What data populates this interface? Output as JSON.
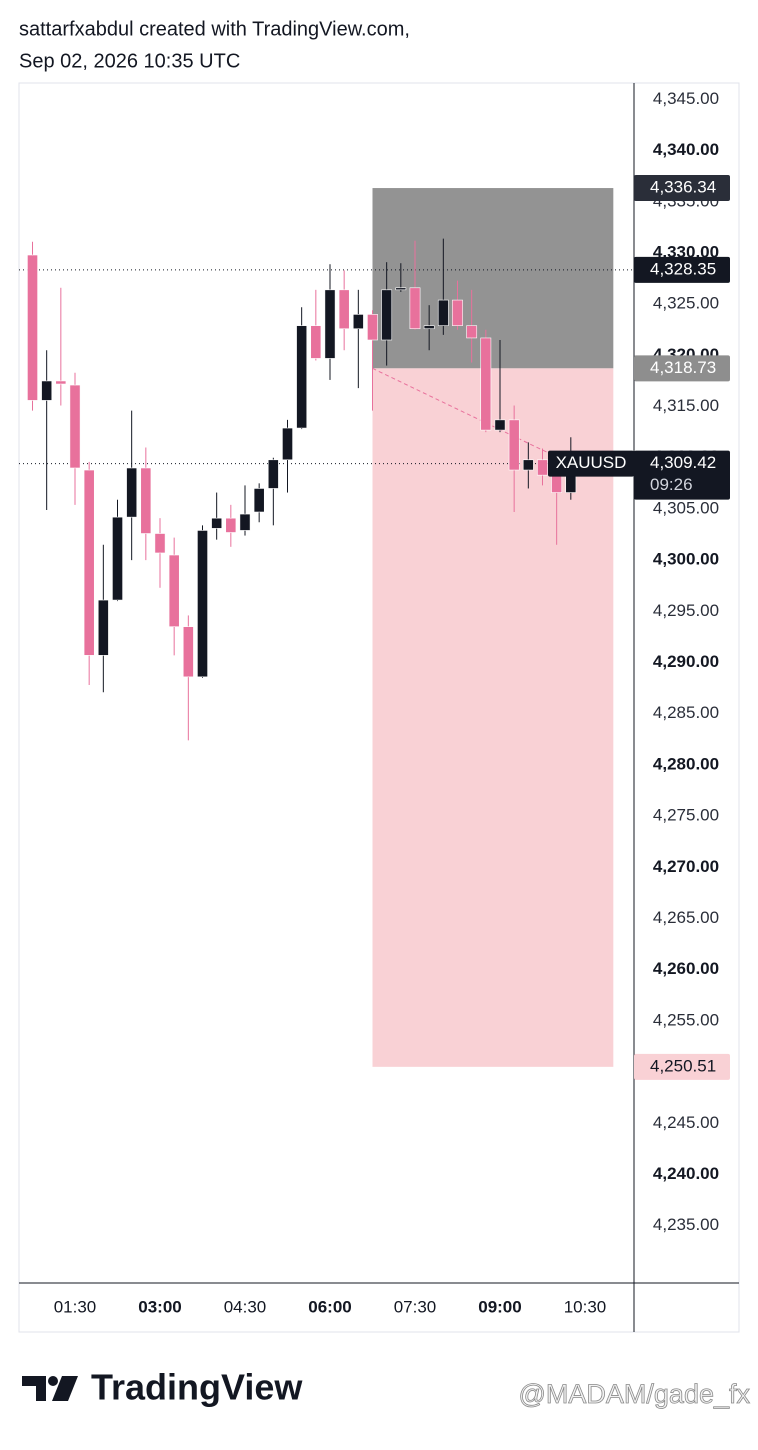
{
  "header": {
    "line1": "sattarfxabdul created with TradingView.com,",
    "line2": "Sep 02, 2026 10:35 UTC"
  },
  "chart_data": {
    "type": "candlestick",
    "x": [
      45,
      60,
      75,
      90,
      105,
      120,
      135,
      150,
      165,
      180,
      195,
      210,
      225,
      240,
      255,
      270,
      285,
      300,
      315,
      330,
      345,
      360,
      375,
      390,
      405,
      420,
      435,
      450,
      465,
      480,
      495,
      510,
      525,
      540,
      555,
      570,
      585,
      600,
      615
    ],
    "open": [
      4329.8,
      4315.6,
      4317.5,
      4317.1,
      4308.8,
      4290.7,
      4296.1,
      4304.2,
      4309.0,
      4302.6,
      4300.5,
      4293.5,
      4288.6,
      4303.1,
      4304.1,
      4302.9,
      4304.7,
      4307.0,
      4309.8,
      4312.9,
      4322.9,
      4319.7,
      4326.4,
      4322.6,
      4324.0,
      4321.5,
      4326.4,
      4326.6,
      4322.6,
      4322.9,
      4325.4,
      4322.9,
      4321.7,
      4312.7,
      4313.7,
      4308.8,
      4309.8,
      4308.3,
      4306.6
    ],
    "high": [
      4331.1,
      4320.5,
      4326.6,
      4318.3,
      4309.6,
      4301.5,
      4305.9,
      4314.6,
      4311.0,
      4304.1,
      4302.2,
      4294.6,
      4303.4,
      4306.6,
      4305.4,
      4307.3,
      4307.5,
      4310.0,
      4313.7,
      4324.7,
      4326.4,
      4328.9,
      4328.3,
      4326.4,
      4324.4,
      4329.1,
      4329.0,
      4331.2,
      4324.9,
      4331.4,
      4327.3,
      4326.4,
      4322.5,
      4321.5,
      4315.1,
      4311.5,
      4310.9,
      4309.3,
      4312.0
    ],
    "low": [
      4314.6,
      4304.9,
      4315.1,
      4305.4,
      4287.8,
      4287.1,
      4296.0,
      4300.0,
      4300.0,
      4297.3,
      4290.7,
      4282.4,
      4288.5,
      4302.0,
      4301.3,
      4302.4,
      4303.7,
      4303.4,
      4306.6,
      4312.8,
      4319.5,
      4317.6,
      4320.5,
      4316.8,
      4314.6,
      4319.0,
      4326.2,
      4322.5,
      4320.5,
      4322.0,
      4322.5,
      4319.3,
      4312.5,
      4312.5,
      4304.7,
      4307.0,
      4307.3,
      4301.5,
      4305.9
    ],
    "close": [
      4315.6,
      4317.5,
      4317.2,
      4309.0,
      4290.7,
      4296.1,
      4304.2,
      4309.0,
      4302.6,
      4300.7,
      4293.5,
      4288.6,
      4302.9,
      4304.1,
      4302.7,
      4304.5,
      4307.0,
      4309.8,
      4312.9,
      4322.9,
      4319.7,
      4326.4,
      4322.6,
      4324.0,
      4321.5,
      4326.4,
      4326.6,
      4322.6,
      4322.9,
      4325.4,
      4322.9,
      4321.7,
      4312.7,
      4313.7,
      4308.8,
      4309.8,
      4308.3,
      4306.6,
      4309.42
    ],
    "up_color": "#131722",
    "down_color": "#e8719c",
    "xlim": [
      30.7,
      681.9
    ],
    "xticks": [
      {
        "value": 90,
        "label": "01:30"
      },
      {
        "value": 180,
        "label": "03:00"
      },
      {
        "value": 270,
        "label": "04:30"
      },
      {
        "value": 360,
        "label": "06:00"
      },
      {
        "value": 450,
        "label": "07:30"
      },
      {
        "value": 540,
        "label": "09:00"
      },
      {
        "value": 630,
        "label": "10:30"
      }
    ],
    "ylim": [
      4229.4,
      4346.6
    ],
    "yticks": [
      {
        "value": 4235,
        "label": "4,235.00"
      },
      {
        "value": 4240,
        "label": "4,240.00"
      },
      {
        "value": 4245,
        "label": "4,245.00"
      },
      {
        "value": 4250,
        "label": "4,250.00"
      },
      {
        "value": 4255,
        "label": "4,255.00"
      },
      {
        "value": 4260,
        "label": "4,260.00"
      },
      {
        "value": 4265,
        "label": "4,265.00"
      },
      {
        "value": 4270,
        "label": "4,270.00"
      },
      {
        "value": 4275,
        "label": "4,275.00"
      },
      {
        "value": 4280,
        "label": "4,280.00"
      },
      {
        "value": 4285,
        "label": "4,285.00"
      },
      {
        "value": 4290,
        "label": "4,290.00"
      },
      {
        "value": 4295,
        "label": "4,295.00"
      },
      {
        "value": 4300,
        "label": "4,300.00"
      },
      {
        "value": 4305,
        "label": "4,305.00"
      },
      {
        "value": 4310,
        "label": "4,310.00"
      },
      {
        "value": 4315,
        "label": "4,315.00"
      },
      {
        "value": 4320,
        "label": "4,320.00"
      },
      {
        "value": 4325,
        "label": "4,325.00"
      },
      {
        "value": 4330,
        "label": "4,330.00"
      },
      {
        "value": 4335,
        "label": "4,335.00"
      },
      {
        "value": 4340,
        "label": "4,340.00"
      },
      {
        "value": 4345,
        "label": "4,345.00"
      }
    ],
    "position": {
      "x_start": 405,
      "x_end": 660,
      "stop": {
        "value": 4336.34,
        "label": "4,336.34"
      },
      "entry": {
        "value": 4318.73,
        "label": "4,318.73"
      },
      "target": {
        "value": 4250.51,
        "label": "4,250.51"
      },
      "stop_color": "#939393",
      "target_color": "#f9d1d5"
    },
    "price_line": {
      "value": 4328.35,
      "label": "4,328.35"
    },
    "last_price": {
      "value": 4309.42,
      "label": "4,309.42",
      "countdown": "09:26",
      "symbol": "XAUUSD"
    }
  },
  "footer": {
    "logo": "TradingView",
    "watermark": "@MADAM/gade_fx"
  }
}
